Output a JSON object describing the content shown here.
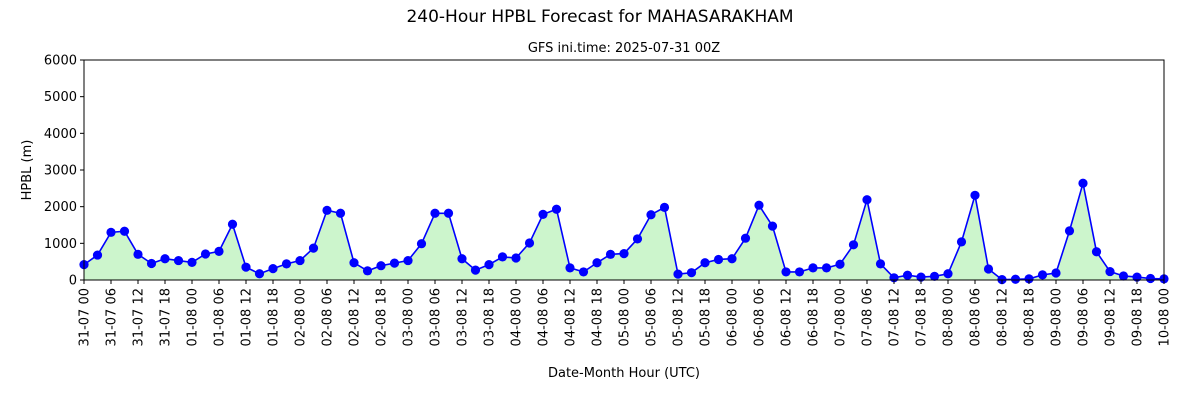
{
  "chart_data": {
    "type": "area",
    "title": "240-Hour HPBL Forecast for MAHASARAKHAM",
    "subtitle": "GFS ini.time: 2025-07-31 00Z",
    "xlabel": "Date-Month Hour (UTC)",
    "ylabel": "HPBL (m)",
    "ylim": [
      0,
      6000
    ],
    "yticks": [
      0,
      1000,
      2000,
      3000,
      4000,
      5000,
      6000
    ],
    "x_step_hours": 3,
    "xtick_every": 2,
    "categories": [
      "31-07 00",
      "31-07 03",
      "31-07 06",
      "31-07 09",
      "31-07 12",
      "31-07 15",
      "31-07 18",
      "31-07 21",
      "01-08 00",
      "01-08 03",
      "01-08 06",
      "01-08 09",
      "01-08 12",
      "01-08 15",
      "01-08 18",
      "01-08 21",
      "02-08 00",
      "02-08 03",
      "02-08 06",
      "02-08 09",
      "02-08 12",
      "02-08 15",
      "02-08 18",
      "02-08 21",
      "03-08 00",
      "03-08 03",
      "03-08 06",
      "03-08 09",
      "03-08 12",
      "03-08 15",
      "03-08 18",
      "03-08 21",
      "04-08 00",
      "04-08 03",
      "04-08 06",
      "04-08 09",
      "04-08 12",
      "04-08 15",
      "04-08 18",
      "04-08 21",
      "05-08 00",
      "05-08 03",
      "05-08 06",
      "05-08 09",
      "05-08 12",
      "05-08 15",
      "05-08 18",
      "05-08 21",
      "06-08 00",
      "06-08 03",
      "06-08 06",
      "06-08 09",
      "06-08 12",
      "06-08 15",
      "06-08 18",
      "06-08 21",
      "07-08 00",
      "07-08 03",
      "07-08 06",
      "07-08 09",
      "07-08 12",
      "07-08 15",
      "07-08 18",
      "07-08 21",
      "08-08 00",
      "08-08 03",
      "08-08 06",
      "08-08 09",
      "08-08 12",
      "08-08 15",
      "08-08 18",
      "08-08 21",
      "09-08 00",
      "09-08 03",
      "09-08 06",
      "09-08 09",
      "09-08 12",
      "09-08 15",
      "09-08 18",
      "09-08 21",
      "10-08 00"
    ],
    "series": [
      {
        "values": [
          420,
          680,
          1300,
          1330,
          700,
          450,
          580,
          530,
          480,
          710,
          780,
          1520,
          350,
          170,
          310,
          440,
          530,
          870,
          1900,
          1820,
          470,
          250,
          390,
          460,
          530,
          990,
          1820,
          1820,
          580,
          270,
          420,
          630,
          600,
          1010,
          1790,
          1930,
          330,
          220,
          470,
          700,
          720,
          1120,
          1780,
          1980,
          160,
          200,
          470,
          560,
          580,
          1140,
          2040,
          1470,
          220,
          220,
          330,
          330,
          430,
          960,
          2190,
          440,
          60,
          130,
          80,
          100,
          170,
          1040,
          2310,
          300,
          10,
          20,
          30,
          140,
          190,
          1340,
          2640,
          770,
          230,
          110,
          80,
          40,
          30
        ]
      }
    ],
    "colors": {
      "line": "#0000ff",
      "marker": "#0000ff",
      "fill": "#ccf5cc"
    },
    "grid": false
  }
}
